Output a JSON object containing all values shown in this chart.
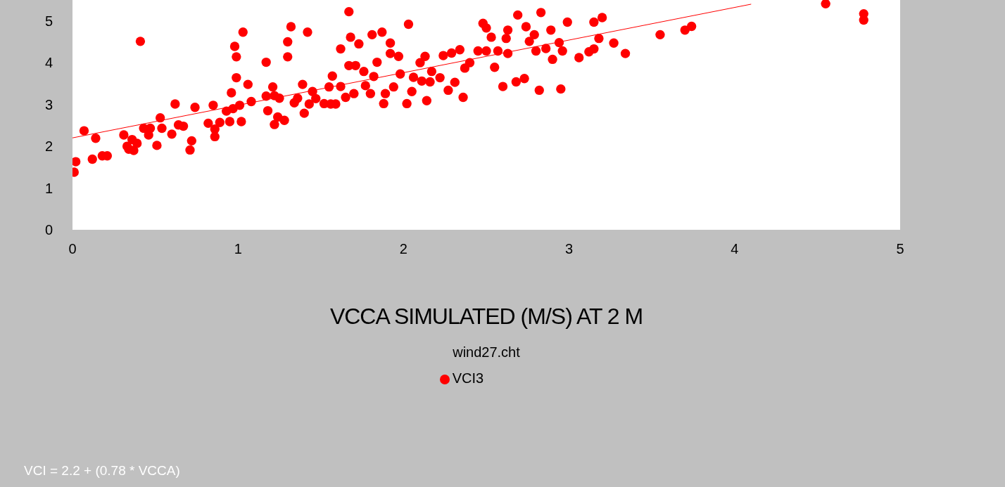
{
  "chart_data": {
    "type": "scatter",
    "xlabel": "VCCA SIMULATED (M/S) AT 2 M",
    "subtitle": "wind27.cht",
    "annotations": [
      "VCI = 2.2 + (0.78 * VCCA)"
    ],
    "xlim": [
      0,
      5
    ],
    "xticks": [
      0,
      1,
      2,
      3,
      4,
      5
    ],
    "ylim": [
      0,
      5.5
    ],
    "yticks": [
      0,
      1,
      2,
      3,
      4,
      5
    ],
    "grid": false,
    "legend": "bottom",
    "series": [
      {
        "name": "VCI3",
        "marker": "circle",
        "color": "#ff0000",
        "x": [
          0.01,
          0.02,
          0.07,
          0.12,
          0.14,
          0.18,
          0.21,
          0.31,
          0.33,
          0.34,
          0.37,
          0.36,
          0.39,
          0.41,
          0.43,
          0.46,
          0.47,
          0.51,
          0.53,
          0.54,
          0.6,
          0.62,
          0.64,
          0.67,
          0.71,
          0.72,
          0.74,
          0.82,
          0.85,
          0.86,
          0.86,
          0.89,
          0.93,
          0.95,
          0.96,
          0.97,
          0.98,
          0.99,
          0.99,
          1.01,
          1.02,
          1.03,
          1.06,
          1.08,
          1.17,
          1.17,
          1.18,
          1.22,
          1.21,
          1.22,
          1.24,
          1.28,
          1.25,
          1.3,
          1.3,
          1.32,
          1.34,
          1.36,
          1.39,
          1.4,
          1.42,
          1.43,
          1.45,
          1.47,
          1.52,
          1.55,
          1.56,
          1.57,
          1.59,
          1.62,
          1.62,
          1.65,
          1.67,
          1.67,
          1.68,
          1.7,
          1.71,
          1.73,
          1.76,
          1.77,
          1.8,
          1.81,
          1.82,
          1.84,
          1.87,
          1.88,
          1.89,
          1.92,
          1.92,
          1.94,
          1.97,
          1.98,
          2.03,
          2.02,
          2.05,
          2.06,
          2.1,
          2.11,
          2.13,
          2.14,
          2.16,
          2.17,
          2.22,
          2.24,
          2.27,
          2.29,
          2.31,
          2.34,
          2.36,
          2.37,
          2.4,
          2.45,
          2.48,
          2.5,
          2.5,
          2.53,
          2.55,
          2.57,
          2.6,
          2.62,
          2.63,
          2.63,
          2.68,
          2.69,
          2.73,
          2.74,
          2.76,
          2.79,
          2.8,
          2.82,
          2.83,
          2.86,
          2.89,
          2.9,
          2.94,
          2.95,
          2.96,
          2.99,
          3.06,
          3.12,
          3.15,
          3.15,
          3.18,
          3.2,
          3.27,
          3.34,
          3.55,
          3.7,
          3.74,
          4.55,
          4.78,
          4.78
        ],
        "values": [
          1.38,
          1.63,
          2.37,
          1.69,
          2.19,
          1.77,
          1.77,
          2.27,
          2.0,
          1.93,
          1.9,
          2.16,
          2.07,
          4.51,
          2.43,
          2.27,
          2.43,
          2.02,
          2.68,
          2.43,
          2.29,
          3.01,
          2.51,
          2.48,
          1.91,
          2.13,
          2.93,
          2.55,
          2.98,
          2.41,
          2.23,
          2.57,
          2.84,
          2.59,
          3.28,
          2.9,
          4.39,
          4.14,
          3.64,
          2.98,
          2.59,
          4.73,
          3.48,
          3.07,
          4.01,
          3.2,
          2.85,
          3.21,
          3.42,
          2.52,
          2.7,
          2.62,
          3.15,
          4.5,
          4.14,
          4.86,
          3.04,
          3.15,
          3.48,
          2.79,
          4.73,
          3.01,
          3.31,
          3.14,
          3.02,
          3.42,
          3.01,
          3.68,
          3.01,
          3.43,
          4.33,
          3.17,
          5.22,
          3.93,
          4.61,
          3.26,
          3.93,
          4.45,
          3.79,
          3.45,
          3.26,
          4.67,
          3.67,
          4.01,
          4.73,
          3.02,
          3.26,
          4.22,
          4.47,
          3.42,
          4.15,
          3.73,
          4.92,
          3.02,
          3.31,
          3.65,
          4.0,
          3.56,
          4.15,
          3.09,
          3.54,
          3.79,
          3.64,
          4.17,
          3.34,
          4.23,
          3.53,
          4.31,
          3.17,
          3.87,
          4.0,
          4.28,
          4.94,
          4.83,
          4.28,
          4.61,
          3.89,
          4.28,
          3.43,
          4.58,
          4.78,
          4.22,
          3.54,
          5.14,
          3.62,
          4.86,
          4.51,
          4.67,
          4.28,
          3.34,
          5.2,
          4.34,
          4.78,
          4.08,
          4.48,
          3.37,
          4.28,
          4.97,
          4.12,
          4.26,
          4.33,
          4.97,
          4.58,
          5.08,
          4.47,
          4.22,
          4.67,
          4.78,
          4.87,
          5.41,
          5.02,
          5.17
        ]
      },
      {
        "type": "line",
        "marker": "none",
        "color": "#ff0000",
        "x": [
          0,
          4.1
        ],
        "values": [
          2.2,
          5.4
        ]
      }
    ]
  }
}
